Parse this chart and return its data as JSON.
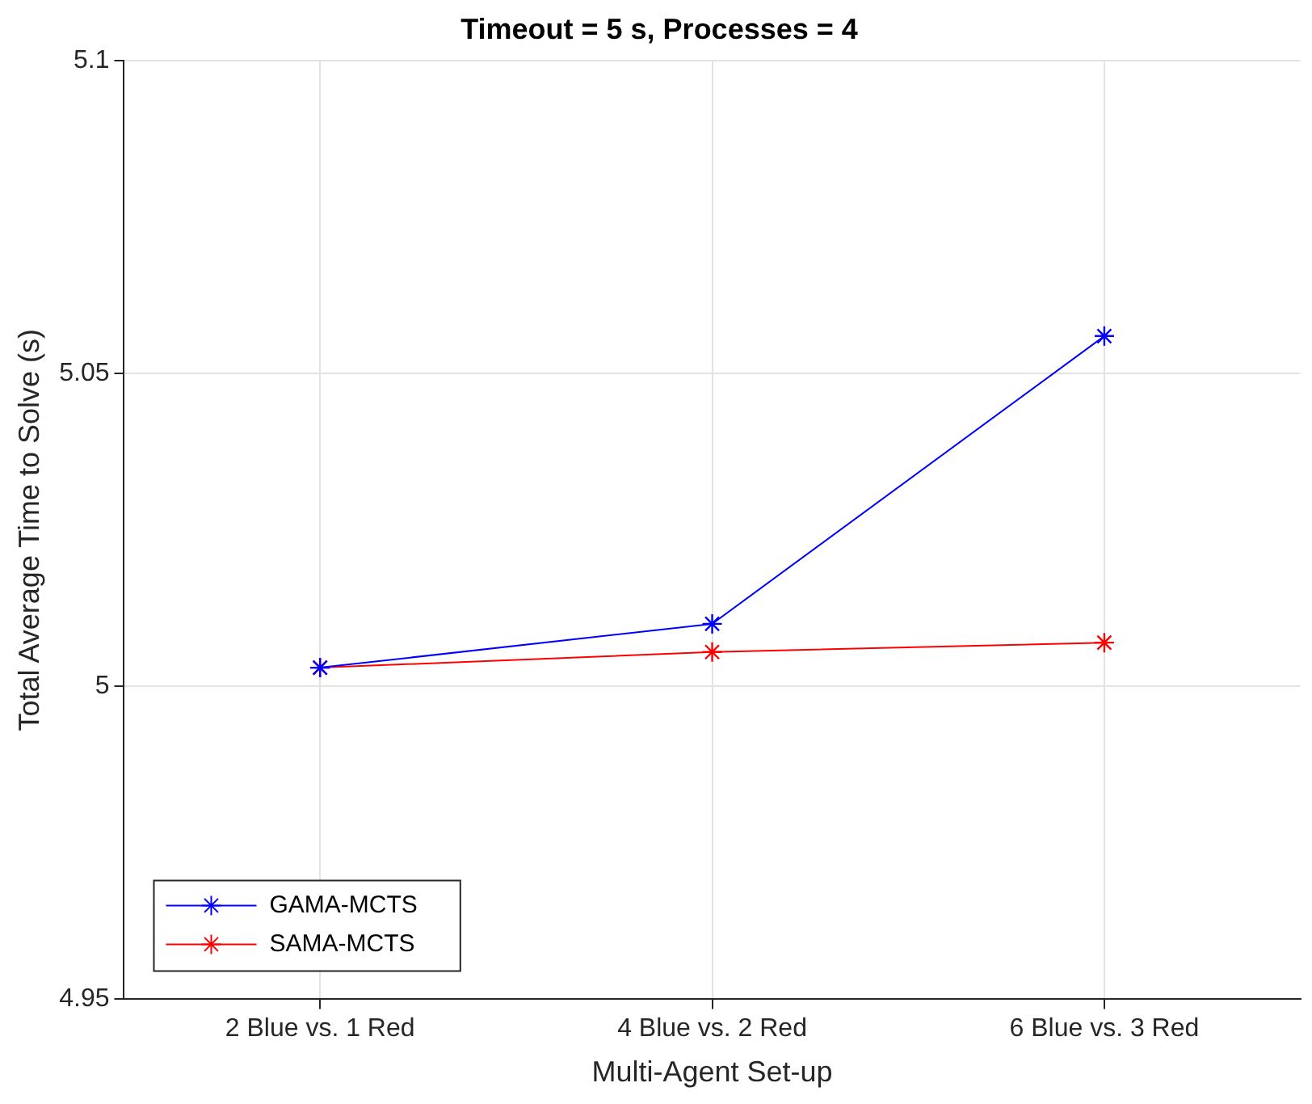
{
  "chart_data": {
    "type": "line",
    "title": "Timeout = 5 s, Processes = 4",
    "xlabel": "Multi-Agent Set-up",
    "ylabel": "Total Average Time to Solve (s)",
    "categories": [
      "2 Blue vs. 1 Red",
      "4 Blue vs. 2 Red",
      "6 Blue vs. 3 Red"
    ],
    "series": [
      {
        "name": "GAMA-MCTS",
        "color": "#0000ff",
        "values": [
          5.003,
          5.01,
          5.056
        ]
      },
      {
        "name": "SAMA-MCTS",
        "color": "#ff0000",
        "values": [
          5.003,
          5.0055,
          5.007
        ]
      }
    ],
    "ylim": [
      4.95,
      5.1
    ],
    "yticks": [
      4.95,
      5,
      5.05,
      5.1
    ],
    "grid": true,
    "legend": "bottom left",
    "marker": "cross",
    "line_style": "solid"
  }
}
